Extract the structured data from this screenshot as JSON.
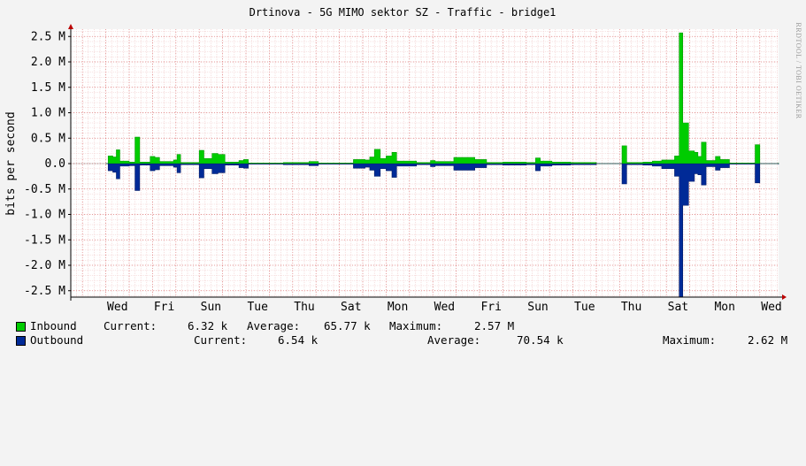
{
  "chart_data": {
    "type": "area",
    "title": "Drtinova - 5G MIMO sektor SZ - Traffic - bridge1",
    "ylabel": "bits per second",
    "ylim": [
      -2.6,
      2.6
    ],
    "y_unit": "M",
    "y_ticks": [
      {
        "v": 2.5,
        "label": "2.5 M"
      },
      {
        "v": 2.0,
        "label": "2.0 M"
      },
      {
        "v": 1.5,
        "label": "1.5 M"
      },
      {
        "v": 1.0,
        "label": "1.0 M"
      },
      {
        "v": 0.5,
        "label": "0.5 M"
      },
      {
        "v": 0.0,
        "label": "0.0"
      },
      {
        "v": -0.5,
        "label": "-0.5 M"
      },
      {
        "v": -1.0,
        "label": "-1.0 M"
      },
      {
        "v": -1.5,
        "label": "-1.5 M"
      },
      {
        "v": -2.0,
        "label": "-2.0 M"
      },
      {
        "v": -2.5,
        "label": "-2.5 M"
      }
    ],
    "x_days": 28,
    "x_day_labels": [
      "Wed",
      "Fri",
      "Sun",
      "Tue",
      "Thu",
      "Sat",
      "Mon",
      "Wed",
      "Fri",
      "Sun",
      "Tue",
      "Thu",
      "Sat",
      "Mon",
      "Wed"
    ],
    "x_label_days": [
      1,
      3,
      5,
      7,
      9,
      11,
      13,
      15,
      17,
      19,
      21,
      23,
      25,
      27,
      29
    ],
    "grid": true,
    "series": [
      {
        "name": "Inbound",
        "color": "#00cc00",
        "points": [
          [
            0.0,
            0.0
          ],
          [
            0.1,
            0.15
          ],
          [
            0.3,
            0.13
          ],
          [
            0.45,
            0.27
          ],
          [
            0.6,
            0.05
          ],
          [
            1.0,
            0.03
          ],
          [
            1.25,
            0.52
          ],
          [
            1.45,
            0.03
          ],
          [
            1.9,
            0.14
          ],
          [
            2.1,
            0.12
          ],
          [
            2.3,
            0.04
          ],
          [
            2.9,
            0.07
          ],
          [
            3.05,
            0.18
          ],
          [
            3.2,
            0.02
          ],
          [
            4.0,
            0.26
          ],
          [
            4.2,
            0.1
          ],
          [
            4.55,
            0.2
          ],
          [
            4.8,
            0.18
          ],
          [
            5.1,
            0.03
          ],
          [
            5.7,
            0.06
          ],
          [
            5.9,
            0.08
          ],
          [
            6.1,
            0.01
          ],
          [
            7.6,
            0.02
          ],
          [
            8.1,
            0.02
          ],
          [
            8.7,
            0.04
          ],
          [
            9.1,
            0.01
          ],
          [
            10.6,
            0.08
          ],
          [
            11.1,
            0.07
          ],
          [
            11.3,
            0.13
          ],
          [
            11.5,
            0.28
          ],
          [
            11.75,
            0.1
          ],
          [
            12.0,
            0.15
          ],
          [
            12.25,
            0.22
          ],
          [
            12.45,
            0.05
          ],
          [
            13.3,
            0.02
          ],
          [
            13.9,
            0.06
          ],
          [
            14.1,
            0.04
          ],
          [
            14.9,
            0.12
          ],
          [
            15.8,
            0.08
          ],
          [
            16.3,
            0.02
          ],
          [
            17.0,
            0.03
          ],
          [
            18.0,
            0.02
          ],
          [
            18.4,
            0.11
          ],
          [
            18.6,
            0.05
          ],
          [
            19.1,
            0.03
          ],
          [
            19.9,
            0.02
          ],
          [
            21.0,
            0.0
          ],
          [
            22.1,
            0.35
          ],
          [
            22.3,
            0.02
          ],
          [
            23.0,
            0.03
          ],
          [
            23.4,
            0.05
          ],
          [
            23.8,
            0.07
          ],
          [
            24.35,
            0.15
          ],
          [
            24.55,
            2.57
          ],
          [
            24.7,
            0.8
          ],
          [
            24.95,
            0.25
          ],
          [
            25.2,
            0.22
          ],
          [
            25.35,
            0.14
          ],
          [
            25.5,
            0.42
          ],
          [
            25.7,
            0.06
          ],
          [
            26.1,
            0.14
          ],
          [
            26.3,
            0.08
          ],
          [
            26.7,
            0.01
          ],
          [
            27.8,
            0.37
          ],
          [
            28.0,
            0.0
          ],
          [
            28.8,
            0.02
          ]
        ]
      },
      {
        "name": "Outbound",
        "color": "#002a97",
        "points": [
          [
            0.0,
            0.0
          ],
          [
            0.1,
            -0.14
          ],
          [
            0.3,
            -0.17
          ],
          [
            0.45,
            -0.3
          ],
          [
            0.6,
            -0.05
          ],
          [
            1.0,
            -0.04
          ],
          [
            1.25,
            -0.53
          ],
          [
            1.45,
            -0.03
          ],
          [
            1.9,
            -0.14
          ],
          [
            2.1,
            -0.12
          ],
          [
            2.3,
            -0.04
          ],
          [
            2.9,
            -0.07
          ],
          [
            3.05,
            -0.18
          ],
          [
            3.2,
            -0.02
          ],
          [
            4.0,
            -0.28
          ],
          [
            4.2,
            -0.1
          ],
          [
            4.55,
            -0.2
          ],
          [
            4.8,
            -0.18
          ],
          [
            5.1,
            -0.03
          ],
          [
            5.7,
            -0.08
          ],
          [
            5.9,
            -0.09
          ],
          [
            6.1,
            -0.01
          ],
          [
            7.6,
            -0.02
          ],
          [
            8.1,
            -0.02
          ],
          [
            8.7,
            -0.04
          ],
          [
            9.1,
            -0.01
          ],
          [
            10.6,
            -0.09
          ],
          [
            11.1,
            -0.07
          ],
          [
            11.3,
            -0.13
          ],
          [
            11.5,
            -0.25
          ],
          [
            11.75,
            -0.1
          ],
          [
            12.0,
            -0.14
          ],
          [
            12.25,
            -0.27
          ],
          [
            12.45,
            -0.05
          ],
          [
            13.3,
            -0.02
          ],
          [
            13.9,
            -0.06
          ],
          [
            14.1,
            -0.04
          ],
          [
            14.9,
            -0.13
          ],
          [
            15.8,
            -0.08
          ],
          [
            16.3,
            -0.02
          ],
          [
            17.0,
            -0.03
          ],
          [
            18.0,
            -0.02
          ],
          [
            18.4,
            -0.14
          ],
          [
            18.6,
            -0.05
          ],
          [
            19.1,
            -0.03
          ],
          [
            19.9,
            -0.02
          ],
          [
            21.0,
            0.0
          ],
          [
            22.1,
            -0.4
          ],
          [
            22.3,
            -0.02
          ],
          [
            23.0,
            -0.03
          ],
          [
            23.4,
            -0.05
          ],
          [
            23.8,
            -0.1
          ],
          [
            24.35,
            -0.25
          ],
          [
            24.55,
            -2.62
          ],
          [
            24.7,
            -0.82
          ],
          [
            24.95,
            -0.35
          ],
          [
            25.2,
            -0.2
          ],
          [
            25.35,
            -0.22
          ],
          [
            25.5,
            -0.42
          ],
          [
            25.7,
            -0.06
          ],
          [
            26.1,
            -0.13
          ],
          [
            26.3,
            -0.08
          ],
          [
            26.7,
            -0.01
          ],
          [
            27.8,
            -0.38
          ],
          [
            28.0,
            0.0
          ],
          [
            28.8,
            -0.02
          ]
        ]
      }
    ]
  },
  "side_text": "RRDTOOL / TOBI OETIKER",
  "legend": {
    "inbound": {
      "name": "Inbound",
      "current_label": "Current:",
      "current": "6.32 k",
      "average_label": "Average:",
      "average": "65.77 k",
      "maximum_label": "Maximum:",
      "maximum": "2.57 M"
    },
    "outbound": {
      "name": "Outbound",
      "current_label": "Current:",
      "current": "6.54 k",
      "average_label": "Average:",
      "average": "70.54 k",
      "maximum_label": "Maximum:",
      "maximum": "2.62 M"
    }
  }
}
